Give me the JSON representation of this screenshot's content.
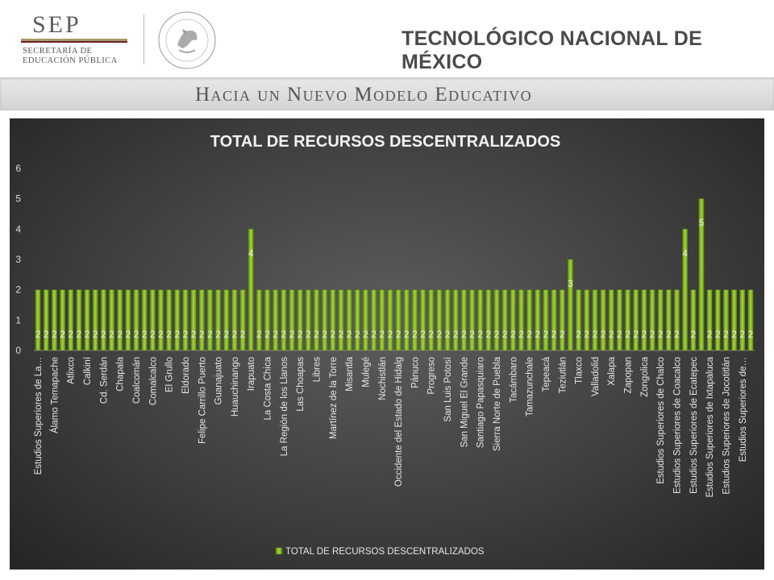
{
  "header": {
    "sep_word": "SEP",
    "sep_sub1": "SECRETARÍA DE",
    "sep_sub2": "EDUCACIÓN PÚBLICA",
    "seal_text": "ESTADOS UNIDOS MEXICANOS",
    "title": "TECNOLÓGICO NACIONAL DE MÉXICO"
  },
  "banner": {
    "text": "Hacia un Nuevo Modelo Educativo"
  },
  "colors": {
    "bar": "#8dc21f",
    "bar_dark": "#4d7a0c",
    "chart_bg": "#3f3f3f"
  },
  "chart_data": {
    "type": "bar",
    "title": "TOTAL DE RECURSOS DESCENTRALIZADOS",
    "legend": "TOTAL DE RECURSOS DESCENTRALIZADOS",
    "legend_position": "bottom",
    "ylim": [
      0,
      6
    ],
    "yticks": [
      "0",
      "1",
      "2",
      "3",
      "4",
      "5",
      "6"
    ],
    "grid": false,
    "categories": [
      "Estudios Superiores de La…",
      "",
      "Álamo Temapache",
      "",
      "Atlixco",
      "",
      "Calkiní",
      "",
      "Cd. Serdán",
      "",
      "Chapala",
      "",
      "Coalcomán",
      "",
      "Comalcalco",
      "",
      "El Grullo",
      "",
      "Eldorado",
      "",
      "Felipe Carrillo Puerto",
      "",
      "Guanajuato",
      "",
      "Huauchinango",
      "",
      "Irapuato",
      "",
      "La Costa Chica",
      "",
      "La Región de los Llanos",
      "",
      "Las Choapas",
      "",
      "Libres",
      "",
      "Martínez de la Torre",
      "",
      "Misantla",
      "",
      "Mulegé",
      "",
      "Nochistlán",
      "",
      "Occidente del Estado de Hidalg",
      "",
      "Pánuco",
      "",
      "Progreso",
      "",
      "San Luis Potosí",
      "",
      "San Miguel El Grande",
      "",
      "Santiago Papasquiaro",
      "",
      "Sierra Norte de Puebla",
      "",
      "Tacámbaro",
      "",
      "Tamazunchale",
      "",
      "Tepeacá",
      "",
      "Teziutlán",
      "",
      "Tlaxco",
      "",
      "Valladolid",
      "",
      "Xalapa",
      "",
      "Zapopan",
      "",
      "Zongolica",
      "",
      "Estudios Superiores de Chalco",
      "",
      "Estudios Superiores de Coacalco",
      "",
      "Estudios Superiores de Ecatepec",
      "",
      "Estudios Superiores de Ixtapaluca",
      "",
      "Estudios Superiores de Jocotitlán",
      "",
      "Estudios Superiores de…",
      ""
    ],
    "values": [
      2,
      2,
      2,
      2,
      2,
      2,
      2,
      2,
      2,
      2,
      2,
      2,
      2,
      2,
      2,
      2,
      2,
      2,
      2,
      2,
      2,
      2,
      2,
      2,
      2,
      2,
      4,
      2,
      2,
      2,
      2,
      2,
      2,
      2,
      2,
      2,
      2,
      2,
      2,
      2,
      2,
      2,
      2,
      2,
      2,
      2,
      2,
      2,
      2,
      2,
      2,
      2,
      2,
      2,
      2,
      2,
      2,
      2,
      2,
      2,
      2,
      2,
      2,
      2,
      2,
      3,
      2,
      2,
      2,
      2,
      2,
      2,
      2,
      2,
      2,
      2,
      2,
      2,
      2,
      4,
      2,
      5,
      2,
      2,
      2,
      2,
      2,
      2
    ],
    "data_labels": [
      "2",
      "2",
      "2",
      "2",
      "2",
      "2",
      "2",
      "2",
      "2",
      "2",
      "2",
      "2",
      "2",
      "2",
      "2",
      "2",
      "2",
      "2",
      "2",
      "2",
      "2",
      "2",
      "2",
      "2",
      "2",
      "2",
      "4",
      "2",
      "2",
      "2",
      "2",
      "2",
      "2",
      "2",
      "2",
      "2",
      "2",
      "2",
      "2",
      "2",
      "2",
      "2",
      "2",
      "2",
      "2",
      "2",
      "2",
      "2",
      "2",
      "2",
      "2",
      "2",
      "2",
      "2",
      "2",
      "2",
      "2",
      "2",
      "2",
      "2",
      "2",
      "2",
      "2",
      "2",
      "2",
      "3",
      "2",
      "2",
      "2",
      "2",
      "2",
      "2",
      "2",
      "2",
      "2",
      "2",
      "2",
      "2",
      "2",
      "4",
      "2",
      "5",
      "2",
      "2",
      "2",
      "2",
      "2",
      "2"
    ]
  }
}
